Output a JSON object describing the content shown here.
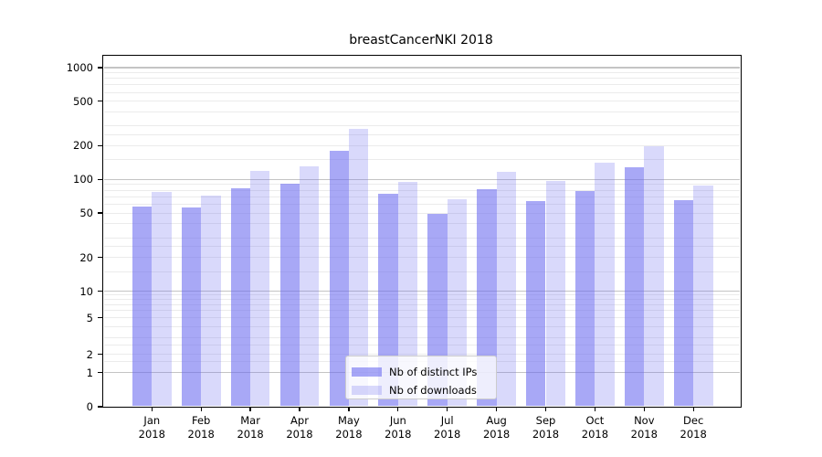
{
  "title": "breastCancerNKI 2018",
  "legend": {
    "position": "lower center",
    "items": [
      {
        "label": "Nb of distinct IPs",
        "color_rgba": "rgba(105,105,240,0.58)",
        "color_hex_on_white": "#a8a8f5"
      },
      {
        "label": "Nb of downloads",
        "color_rgba": "rgba(105,105,240,0.25)",
        "color_hex_on_white": "#d9d9f8"
      }
    ]
  },
  "chart_data": {
    "type": "bar",
    "title": "breastCancerNKI 2018",
    "categories": [
      "Jan 2018",
      "Feb 2018",
      "Mar 2018",
      "Apr 2018",
      "May 2018",
      "Jun 2018",
      "Jul 2018",
      "Aug 2018",
      "Sep 2018",
      "Oct 2018",
      "Nov 2018",
      "Dec 2018"
    ],
    "series": [
      {
        "name": "Nb of distinct IPs",
        "values": [
          57,
          56,
          83,
          92,
          180,
          75,
          49,
          81,
          64,
          79,
          128,
          65
        ]
      },
      {
        "name": "Nb of downloads",
        "values": [
          77,
          72,
          119,
          132,
          283,
          95,
          66,
          118,
          97,
          141,
          198,
          88
        ]
      }
    ],
    "xlabel": "",
    "ylabel": "",
    "yticks": [
      0,
      1,
      2,
      5,
      10,
      20,
      50,
      100,
      200,
      500,
      1000
    ],
    "ylim": [
      0,
      1150
    ],
    "yscale": "log above 10, compressed quasi-linear below 10 (0,1,2,5 ticks)",
    "grid": "horizontal major (1,10,100,1000) + minor log subdivisions",
    "legend_position": "lower center",
    "bar_colors": {
      "distinct_ips": "rgba(105,105,240,0.58)",
      "downloads": "rgba(105,105,240,0.25)"
    }
  }
}
